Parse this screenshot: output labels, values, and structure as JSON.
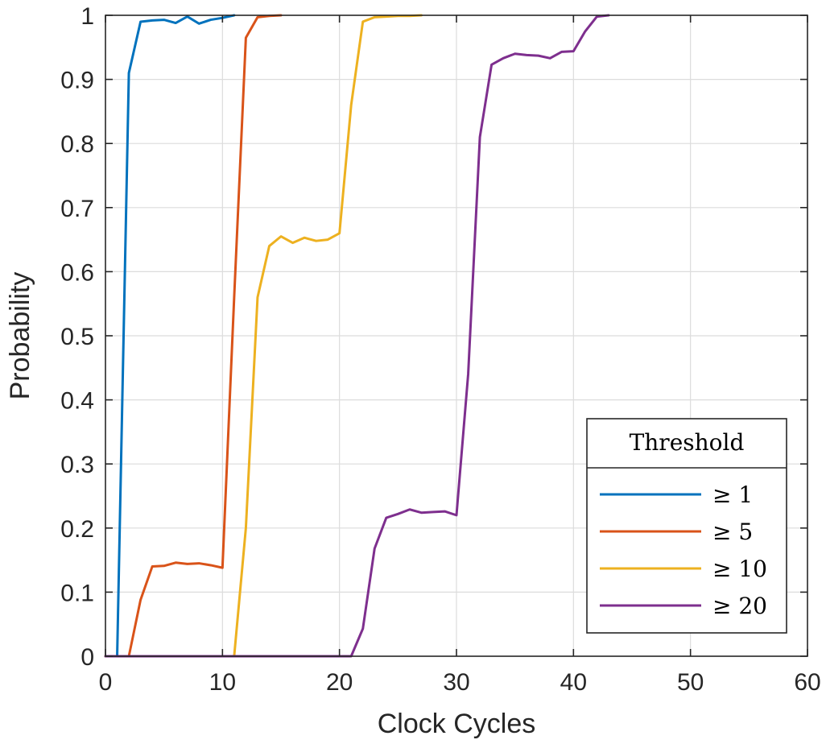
{
  "chart_data": {
    "type": "line",
    "title": "",
    "xlabel": "Clock Cycles",
    "ylabel": "Probability",
    "xlim": [
      0,
      60
    ],
    "ylim": [
      0,
      1
    ],
    "xticks": [
      0,
      10,
      20,
      30,
      40,
      50,
      60
    ],
    "yticks": [
      0,
      0.1,
      0.2,
      0.3,
      0.4,
      0.5,
      0.6,
      0.7,
      0.8,
      0.9,
      1
    ],
    "xtick_labels": [
      "0",
      "10",
      "20",
      "30",
      "40",
      "50",
      "60"
    ],
    "ytick_labels": [
      "0",
      "0.1",
      "0.2",
      "0.3",
      "0.4",
      "0.5",
      "0.6",
      "0.7",
      "0.8",
      "0.9",
      "1"
    ],
    "grid": true,
    "legend": {
      "title": "Threshold",
      "placement": "bottom-right"
    },
    "series": [
      {
        "name": "≥ 1",
        "color": "#0072BD",
        "x": [
          0,
          1,
          2,
          3,
          4,
          5,
          6,
          7,
          8,
          9,
          10,
          11
        ],
        "y": [
          0,
          0,
          0.91,
          0.99,
          0.992,
          0.993,
          0.988,
          0.998,
          0.987,
          0.993,
          0.996,
          1.0
        ]
      },
      {
        "name": "≥ 5",
        "color": "#D95319",
        "x": [
          0,
          1,
          2,
          3,
          4,
          5,
          6,
          7,
          8,
          9,
          10,
          11,
          12,
          13,
          14,
          15
        ],
        "y": [
          0,
          0,
          0,
          0.088,
          0.14,
          0.141,
          0.146,
          0.144,
          0.145,
          0.142,
          0.138,
          0.56,
          0.965,
          0.997,
          0.999,
          1.0
        ]
      },
      {
        "name": "≥ 10",
        "color": "#EDB120",
        "x": [
          0,
          1,
          2,
          3,
          4,
          5,
          6,
          7,
          8,
          9,
          10,
          11,
          12,
          13,
          14,
          15,
          16,
          17,
          18,
          19,
          20,
          21,
          22,
          23,
          24,
          25,
          26,
          27
        ],
        "y": [
          0,
          0,
          0,
          0,
          0,
          0,
          0,
          0,
          0,
          0,
          0,
          0,
          0.2,
          0.56,
          0.64,
          0.655,
          0.645,
          0.653,
          0.648,
          0.65,
          0.66,
          0.86,
          0.99,
          0.997,
          0.998,
          0.999,
          0.999,
          1.0
        ]
      },
      {
        "name": "≥ 20",
        "color": "#7E2F8E",
        "x": [
          0,
          1,
          2,
          3,
          4,
          5,
          6,
          7,
          8,
          9,
          10,
          11,
          12,
          13,
          14,
          15,
          16,
          17,
          18,
          19,
          20,
          21,
          22,
          23,
          24,
          25,
          26,
          27,
          28,
          29,
          30,
          31,
          32,
          33,
          34,
          35,
          36,
          37,
          38,
          39,
          40,
          41,
          42,
          43
        ],
        "y": [
          0,
          0,
          0,
          0,
          0,
          0,
          0,
          0,
          0,
          0,
          0,
          0,
          0,
          0,
          0,
          0,
          0,
          0,
          0,
          0,
          0,
          0,
          0.043,
          0.168,
          0.216,
          0.222,
          0.229,
          0.224,
          0.225,
          0.226,
          0.22,
          0.44,
          0.81,
          0.923,
          0.933,
          0.94,
          0.938,
          0.937,
          0.933,
          0.943,
          0.944,
          0.975,
          0.998,
          1.0
        ]
      }
    ]
  }
}
